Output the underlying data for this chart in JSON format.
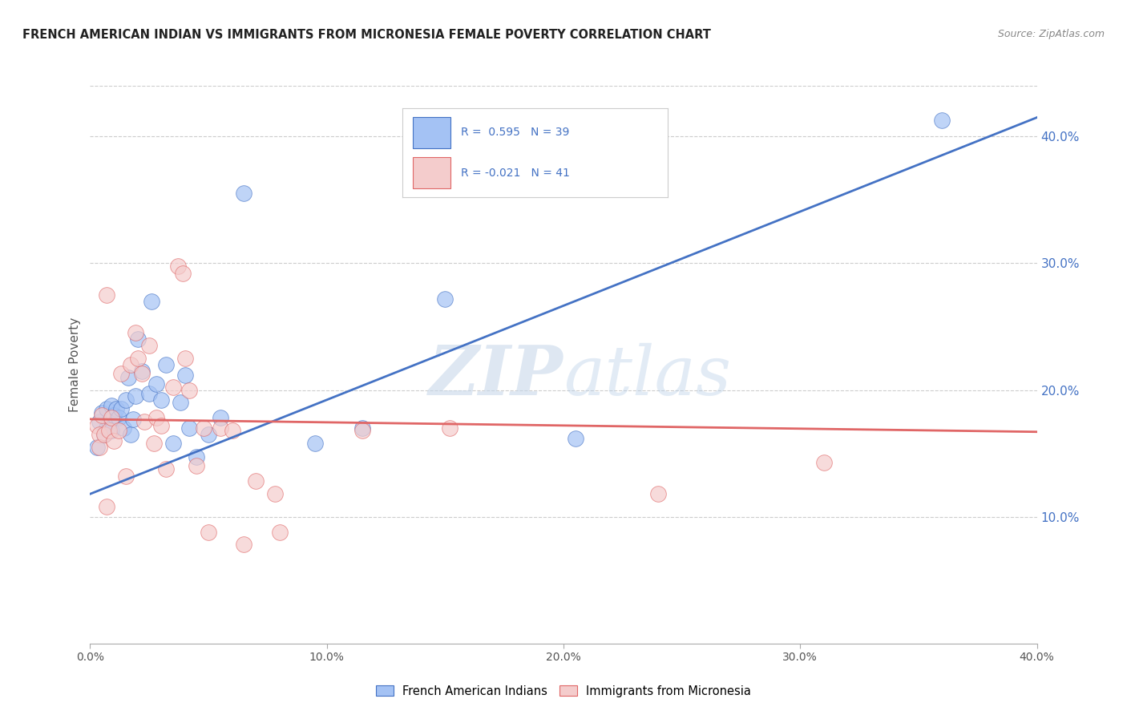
{
  "title": "FRENCH AMERICAN INDIAN VS IMMIGRANTS FROM MICRONESIA FEMALE POVERTY CORRELATION CHART",
  "source": "Source: ZipAtlas.com",
  "ylabel": "Female Poverty",
  "y_ticks": [
    0.0,
    0.1,
    0.2,
    0.3,
    0.4
  ],
  "y_tick_labels_right": [
    "",
    "10.0%",
    "20.0%",
    "30.0%",
    "40.0%"
  ],
  "x_ticks": [
    0.0,
    0.1,
    0.2,
    0.3,
    0.4
  ],
  "x_tick_labels": [
    "0.0%",
    "10.0%",
    "20.0%",
    "30.0%",
    "40.0%"
  ],
  "x_range": [
    0.0,
    0.4
  ],
  "y_range": [
    0.0,
    0.44
  ],
  "legend_text_1": "R =  0.595   N = 39",
  "legend_text_2": "R = -0.021   N = 41",
  "color_blue_fill": "#a4c2f4",
  "color_blue_edge": "#4472c4",
  "color_pink_fill": "#f4cccc",
  "color_pink_edge": "#e06666",
  "color_line_blue": "#4472c4",
  "color_line_pink": "#e06666",
  "watermark_zip": "ZIP",
  "watermark_atlas": "atlas",
  "grid_color": "#cccccc",
  "blue_scatter_x": [
    0.003,
    0.004,
    0.005,
    0.006,
    0.007,
    0.007,
    0.008,
    0.009,
    0.009,
    0.01,
    0.011,
    0.012,
    0.013,
    0.014,
    0.015,
    0.016,
    0.017,
    0.018,
    0.019,
    0.02,
    0.022,
    0.025,
    0.026,
    0.028,
    0.03,
    0.032,
    0.035,
    0.038,
    0.04,
    0.042,
    0.045,
    0.05,
    0.055,
    0.065,
    0.095,
    0.115,
    0.15,
    0.205,
    0.36
  ],
  "blue_scatter_y": [
    0.155,
    0.175,
    0.182,
    0.165,
    0.17,
    0.185,
    0.175,
    0.188,
    0.168,
    0.18,
    0.185,
    0.178,
    0.185,
    0.17,
    0.192,
    0.21,
    0.165,
    0.177,
    0.195,
    0.24,
    0.215,
    0.197,
    0.27,
    0.205,
    0.192,
    0.22,
    0.158,
    0.19,
    0.212,
    0.17,
    0.147,
    0.165,
    0.178,
    0.355,
    0.158,
    0.17,
    0.272,
    0.162,
    0.413
  ],
  "pink_scatter_x": [
    0.003,
    0.004,
    0.004,
    0.005,
    0.006,
    0.007,
    0.007,
    0.008,
    0.009,
    0.01,
    0.012,
    0.013,
    0.015,
    0.017,
    0.019,
    0.02,
    0.022,
    0.023,
    0.025,
    0.027,
    0.028,
    0.03,
    0.032,
    0.035,
    0.037,
    0.039,
    0.04,
    0.042,
    0.045,
    0.048,
    0.05,
    0.055,
    0.06,
    0.065,
    0.07,
    0.078,
    0.08,
    0.115,
    0.152,
    0.24,
    0.31
  ],
  "pink_scatter_y": [
    0.172,
    0.165,
    0.155,
    0.18,
    0.165,
    0.108,
    0.275,
    0.168,
    0.178,
    0.16,
    0.168,
    0.213,
    0.132,
    0.22,
    0.245,
    0.225,
    0.213,
    0.175,
    0.235,
    0.158,
    0.178,
    0.172,
    0.138,
    0.202,
    0.298,
    0.292,
    0.225,
    0.2,
    0.14,
    0.17,
    0.088,
    0.17,
    0.168,
    0.078,
    0.128,
    0.118,
    0.088,
    0.168,
    0.17,
    0.118,
    0.143
  ],
  "blue_line_x": [
    0.0,
    0.4
  ],
  "blue_line_y": [
    0.118,
    0.415
  ],
  "pink_line_x": [
    0.0,
    0.4
  ],
  "pink_line_y": [
    0.177,
    0.167
  ],
  "label_blue": "French American Indians",
  "label_pink": "Immigrants from Micronesia"
}
